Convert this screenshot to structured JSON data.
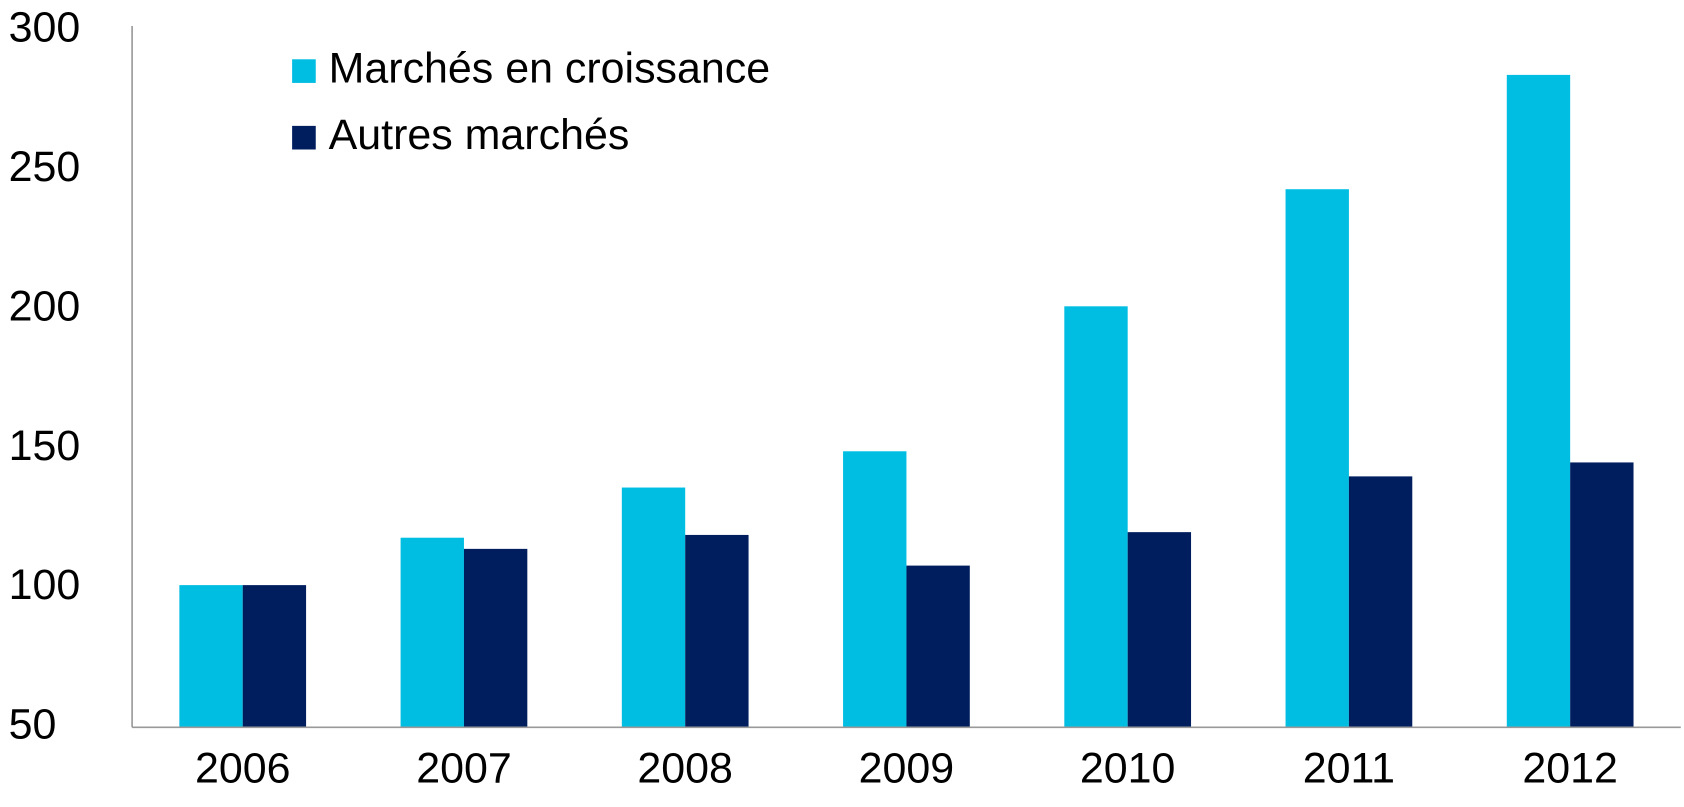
{
  "chart_data": {
    "type": "bar",
    "categories": [
      "2006",
      "2007",
      "2008",
      "2009",
      "2010",
      "2011",
      "2012"
    ],
    "series": [
      {
        "name": "Marchés en croissance",
        "color": "#00bde2",
        "values": [
          101,
          118,
          136,
          149,
          201,
          243,
          284
        ]
      },
      {
        "name": "Autres marchés",
        "color": "#001e5e",
        "values": [
          101,
          114,
          119,
          108,
          120,
          140,
          145
        ]
      }
    ],
    "ylim": [
      50,
      300
    ],
    "yticks": [
      50,
      100,
      150,
      200,
      250,
      300
    ],
    "grid": false,
    "legend": "top-left"
  }
}
